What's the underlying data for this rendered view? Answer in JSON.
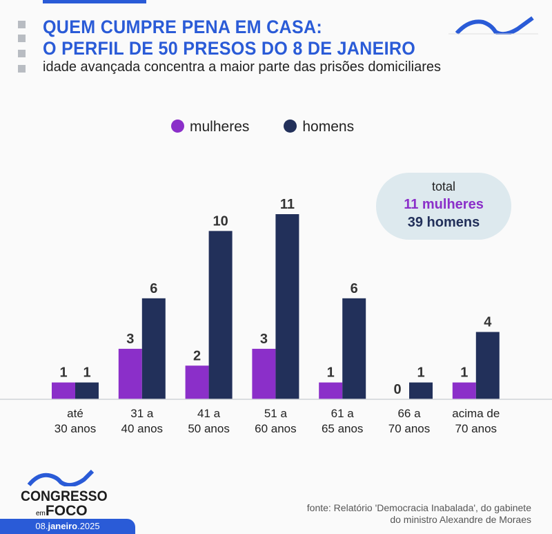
{
  "header": {
    "title_line1": "QUEM CUMPRE PENA EM CASA:",
    "title_line2": "O PERFIL DE 50 PRESOS DO 8 DE JANEIRO",
    "subtitle": "idade avançada concentra a maior parte das prisões domiciliares"
  },
  "total": {
    "label": "total",
    "women": "11 mulheres",
    "men": "39 homens"
  },
  "chart_data": {
    "type": "bar",
    "categories": [
      "até 30 anos",
      "31 a 40 anos",
      "41 a 50 anos",
      "51 a 60 anos",
      "61 a 65 anos",
      "66 a 70 anos",
      "acima de 70 anos"
    ],
    "category_lines": [
      [
        "até",
        "30 anos"
      ],
      [
        "31 a",
        "40 anos"
      ],
      [
        "41 a",
        "50 anos"
      ],
      [
        "51 a",
        "60 anos"
      ],
      [
        "61 a",
        "65 anos"
      ],
      [
        "66 a",
        "70 anos"
      ],
      [
        "acima de",
        "70 anos"
      ]
    ],
    "series": [
      {
        "name": "mulheres",
        "color": "#8b2fc9",
        "values": [
          1,
          3,
          2,
          3,
          1,
          0,
          1
        ]
      },
      {
        "name": "homens",
        "color": "#22305a",
        "values": [
          1,
          6,
          10,
          11,
          6,
          1,
          4
        ]
      }
    ],
    "ylim": [
      0,
      11
    ],
    "grid": false,
    "legend": "top-center",
    "data_labels": true
  },
  "footer": {
    "logo_main": "CONGRESSO",
    "logo_em": "em",
    "logo_foco": "FOCO",
    "date_day": "08.",
    "date_month": "janeiro",
    "date_year": ".2025",
    "source_line1": "fonte: Relatório 'Democracia Inabalada', do gabinete",
    "source_line2": "do ministro Alexandre de Moraes"
  },
  "colors": {
    "brand": "#2a5bd7",
    "women": "#8b2fc9",
    "men": "#22305a"
  }
}
